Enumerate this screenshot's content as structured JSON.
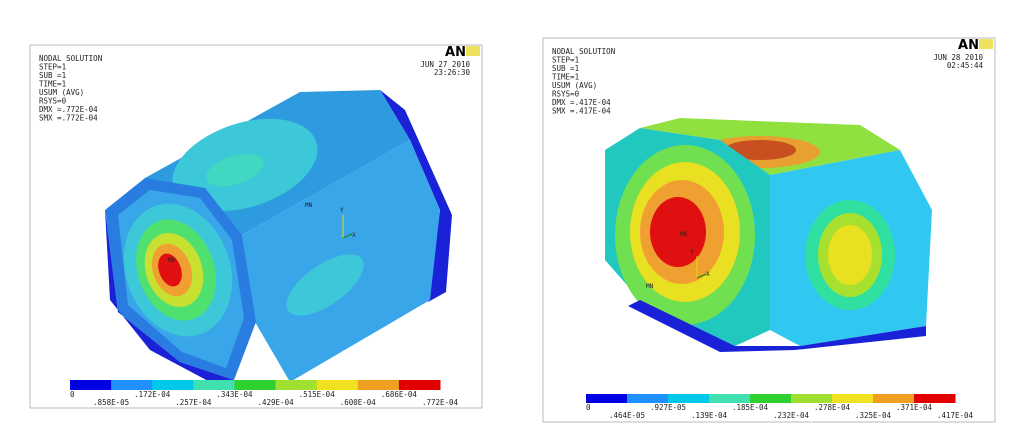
{
  "panels": [
    {
      "info": [
        "NODAL SOLUTION",
        "STEP=1",
        "SUB =1",
        "TIME=1",
        "USUM     (AVG)",
        "RSYS=0",
        "DMX =.772E-04",
        "SMX =.772E-04"
      ],
      "date": "JUN 27 2010",
      "time": "23:26:30",
      "logo": "AN",
      "model_labels": [
        "MN",
        "MX",
        "Y",
        "X"
      ],
      "legend_top": [
        "0",
        ".172E-04",
        ".343E-04",
        ".515E-04",
        ".686E-04"
      ],
      "legend_bottom": [
        ".858E-05",
        ".257E-04",
        ".429E-04",
        ".600E-04",
        ".772E-04"
      ]
    },
    {
      "info": [
        "NODAL SOLUTION",
        "STEP=1",
        "SUB =1",
        "TIME=1",
        "USUM     (AVG)",
        "RSYS=0",
        "DMX =.417E-04",
        "SMX =.417E-04"
      ],
      "date": "JUN 28 2010",
      "time": "02:45:44",
      "logo": "AN",
      "model_labels": [
        "MX",
        "MN",
        "Y",
        "X"
      ],
      "legend_top": [
        "0",
        ".927E-05",
        ".185E-04",
        ".278E-04",
        ".371E-04"
      ],
      "legend_bottom": [
        ".464E-05",
        ".139E-04",
        ".232E-04",
        ".325E-04",
        ".417E-04"
      ]
    }
  ]
}
